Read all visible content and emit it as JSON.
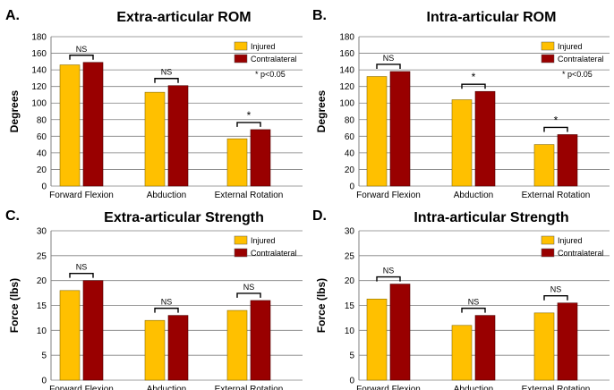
{
  "colors": {
    "injured": "#FFC000",
    "contralateral": "#990000",
    "grid": "#7f7f7f"
  },
  "chart_data": [
    {
      "type": "bar",
      "panel_letter": "A.",
      "title": "Extra-articular ROM",
      "ylabel": "Degrees",
      "xlabel": "",
      "ylim": [
        0,
        180
      ],
      "yticks": [
        0,
        20,
        40,
        60,
        80,
        100,
        120,
        140,
        160,
        180
      ],
      "categories": [
        "Forward Flexion",
        "Abduction",
        "External Rotation"
      ],
      "series": [
        {
          "name": "Injured",
          "values": [
            146,
            113,
            57
          ]
        },
        {
          "name": "Contralateral",
          "values": [
            149,
            121,
            68
          ]
        }
      ],
      "annotations": [
        "NS",
        "NS",
        "*"
      ],
      "note": "* p<0.05",
      "legend": "top-right"
    },
    {
      "type": "bar",
      "panel_letter": "B.",
      "title": "Intra-articular ROM",
      "ylabel": "Degrees",
      "xlabel": "",
      "ylim": [
        0,
        180
      ],
      "yticks": [
        0,
        20,
        40,
        60,
        80,
        100,
        120,
        140,
        160,
        180
      ],
      "categories": [
        "Forward Flexion",
        "Abduction",
        "External Rotation"
      ],
      "series": [
        {
          "name": "Injured",
          "values": [
            132,
            104,
            50
          ]
        },
        {
          "name": "Contralateral",
          "values": [
            138,
            114,
            62
          ]
        }
      ],
      "annotations": [
        "NS",
        "*",
        "*"
      ],
      "note": "* p<0.05",
      "legend": "top-right"
    },
    {
      "type": "bar",
      "panel_letter": "C.",
      "title": "Extra-articular Strength",
      "ylabel": "Force (lbs)",
      "xlabel": "",
      "ylim": [
        0,
        30
      ],
      "yticks": [
        0,
        5,
        10,
        15,
        20,
        25,
        30
      ],
      "categories": [
        "Forward Flexion",
        "Abduction",
        "External Rotation"
      ],
      "series": [
        {
          "name": "Injured",
          "values": [
            18,
            12,
            14
          ]
        },
        {
          "name": "Contralateral",
          "values": [
            20,
            13,
            16
          ]
        }
      ],
      "annotations": [
        "NS",
        "NS",
        "NS"
      ],
      "note": "",
      "legend": "top-right"
    },
    {
      "type": "bar",
      "panel_letter": "D.",
      "title": "Intra-articular Strength",
      "ylabel": "Force (lbs)",
      "xlabel": "",
      "ylim": [
        0,
        30
      ],
      "yticks": [
        0,
        5,
        10,
        15,
        20,
        25,
        30
      ],
      "categories": [
        "Forward Flexion",
        "Abduction",
        "External Rotation"
      ],
      "series": [
        {
          "name": "Injured",
          "values": [
            16.3,
            11,
            13.5
          ]
        },
        {
          "name": "Contralateral",
          "values": [
            19.3,
            13,
            15.5
          ]
        }
      ],
      "annotations": [
        "NS",
        "NS",
        "NS"
      ],
      "note": "",
      "legend": "top-right"
    }
  ]
}
